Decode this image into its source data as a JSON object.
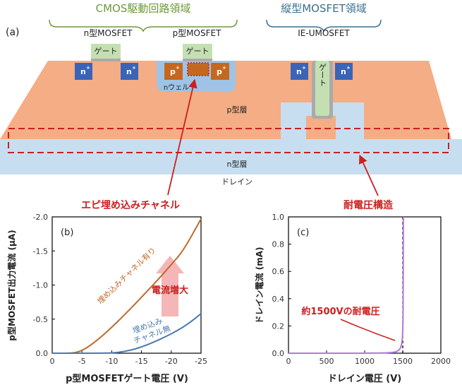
{
  "colors": {
    "p_layer": "#f4ad84",
    "n_layer": "#c7def1",
    "n_plus": "#3a64b8",
    "p_plus": "#c5681f",
    "n_well": "#9ec3e6",
    "gate": "#c4e0b3",
    "gate_oxide": "#aaaaaa",
    "dashed_red": "#cc1f1f",
    "cmos_brace": "#6b9a3a",
    "vertical_brace": "#3a7090",
    "arrow_red": "#cc1f1f",
    "curve_with_channel": "#c0692a",
    "curve_without_channel": "#4a7ab3",
    "curve_drain": "#b47adb",
    "increase_arrow": "#f4b6b6"
  },
  "cross_section": {
    "panel_label": "(a)",
    "cmos_title": "CMOS駆動回路領域",
    "vertical_title": "縦型MOSFET領域",
    "nmos_label": "n型MOSFET",
    "pmos_label": "p型MOSFET",
    "ieumos_label": "IE-UMOSFET",
    "gate_label": "ゲート",
    "n_plus": "n",
    "p_plus": "p",
    "plus_sup": "+",
    "n_well_label": "nウェル",
    "p_layer_label": "p型層",
    "n_layer_label": "n型層",
    "drain_label": "ドレイン",
    "epi_channel_label": "エピ埋め込みチャネル",
    "breakdown_structure_label": "耐電圧構造"
  },
  "chart_data": [
    {
      "type": "line",
      "panel": "(b)",
      "xlabel": "p型MOSFETゲート電圧 (V)",
      "ylabel": "p型MOSFET出力電流 (μA)",
      "xlim": [
        0,
        -25
      ],
      "ylim": [
        0,
        -2.0
      ],
      "x_ticks": [
        "0",
        "-5",
        "-10",
        "-15",
        "-20",
        "-25"
      ],
      "y_ticks": [
        "0.0",
        "-0.5",
        "-1.0",
        "-1.5",
        "-2.0"
      ],
      "grid": false,
      "series": [
        {
          "name": "埋め込みチャネル有り",
          "x": [
            0,
            -3,
            -4,
            -5,
            -6,
            -8,
            -10,
            -12,
            -15,
            -18,
            -20,
            -22,
            -25
          ],
          "y": [
            0,
            0,
            -0.01,
            -0.04,
            -0.09,
            -0.22,
            -0.38,
            -0.55,
            -0.82,
            -1.1,
            -1.3,
            -1.5,
            -1.97
          ]
        },
        {
          "name": "埋め込みチャネル無",
          "x": [
            0,
            -9,
            -11,
            -13,
            -15,
            -17,
            -19,
            -21,
            -23,
            -25
          ],
          "y": [
            0,
            0,
            -0.01,
            -0.04,
            -0.09,
            -0.16,
            -0.24,
            -0.33,
            -0.44,
            -0.58
          ]
        }
      ],
      "annotations": [
        "電流増大"
      ]
    },
    {
      "type": "line",
      "panel": "(c)",
      "xlabel": "ドレイン電圧 (V)",
      "ylabel": "ドレイン電流 (mA)",
      "xlim": [
        0,
        2000
      ],
      "ylim": [
        0,
        1.0
      ],
      "x_ticks": [
        "0",
        "500",
        "1000",
        "1500",
        "2000"
      ],
      "y_ticks": [
        "0.0",
        "0.2",
        "0.4",
        "0.6",
        "0.8",
        "1.0"
      ],
      "grid": false,
      "series": [
        {
          "name": "",
          "x": [
            0,
            500,
            1000,
            1300,
            1400,
            1450,
            1480,
            1495,
            1502,
            1506,
            1508
          ],
          "y": [
            0,
            0,
            0.0,
            0.002,
            0.008,
            0.02,
            0.05,
            0.1,
            0.2,
            0.35,
            1.0
          ]
        }
      ],
      "vline_x": 1500,
      "annotations": [
        "約1500Vの耐電圧"
      ]
    }
  ]
}
